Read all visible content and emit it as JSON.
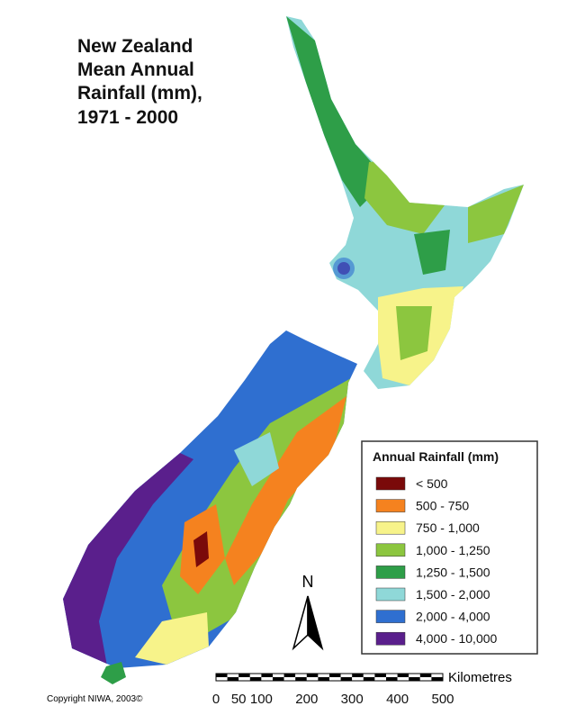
{
  "title": [
    "New Zealand",
    "Mean Annual",
    "Rainfall (mm),",
    "1971 - 2000"
  ],
  "legend": {
    "title": "Annual Rainfall (mm)",
    "items": [
      {
        "label": "< 500",
        "color": "#7a0a0a"
      },
      {
        "label": "500 - 750",
        "color": "#f5821f"
      },
      {
        "label": "750 - 1,000",
        "color": "#f7f38a"
      },
      {
        "label": "1,000 - 1,250",
        "color": "#8cc63f"
      },
      {
        "label": "1,250 - 1,500",
        "color": "#2e9e48"
      },
      {
        "label": "1,500 - 2,000",
        "color": "#8fd8d8"
      },
      {
        "label": "2,000 - 4,000",
        "color": "#2f6fd0"
      },
      {
        "label": "4,000 - 10,000",
        "color": "#5a1f8c"
      }
    ]
  },
  "north_arrow": "N",
  "scale_bar": {
    "unit": "Kilometres",
    "ticks": [
      0,
      50,
      100,
      200,
      300,
      400,
      500
    ]
  },
  "copyright": "Copyright NIWA, 2003©"
}
